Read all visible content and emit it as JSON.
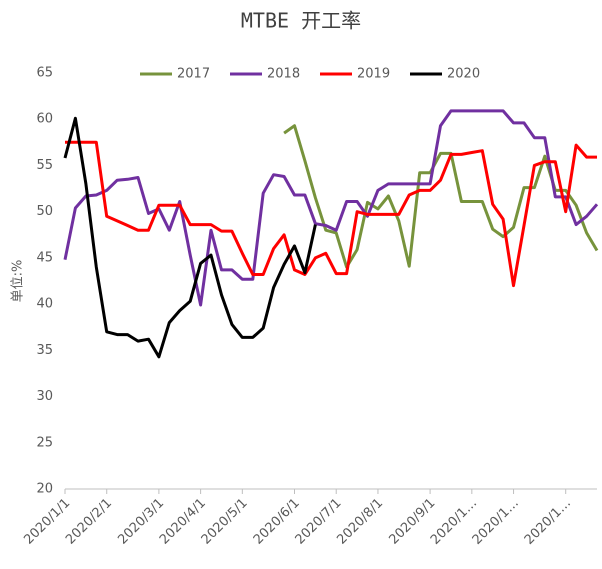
{
  "chart_data": {
    "type": "line",
    "title": "MTBE 开工率",
    "y_label": "单位:%",
    "categories": [
      "2020/1/1",
      null,
      null,
      null,
      "2020/2/1",
      null,
      null,
      null,
      null,
      "2020/3/1",
      null,
      null,
      null,
      "2020/4/1",
      null,
      null,
      null,
      "2020/5/1",
      null,
      null,
      null,
      null,
      "2020/6/1",
      null,
      null,
      null,
      "2020/7/1",
      null,
      null,
      null,
      "2020/8/1",
      null,
      null,
      null,
      null,
      "2020/9/1",
      null,
      null,
      null,
      "2020/1…",
      null,
      null,
      null,
      "2020/1…",
      null,
      null,
      null,
      null,
      "2020/1…",
      null,
      null,
      null
    ],
    "series": [
      {
        "name": "2017",
        "color": "#77933c",
        "values": [
          null,
          null,
          null,
          null,
          null,
          null,
          null,
          null,
          null,
          null,
          null,
          null,
          null,
          null,
          null,
          null,
          null,
          null,
          null,
          null,
          null,
          58.5,
          59.3,
          55.5,
          51.5,
          48,
          47.7,
          44,
          45.9,
          51,
          50.3,
          51.7,
          49,
          44.1,
          54.2,
          54.2,
          56.3,
          56.3,
          51.1,
          51.1,
          51.1,
          48.1,
          47.3,
          48.3,
          52.6,
          52.6,
          56,
          52.3,
          52.3,
          50.7,
          47.7,
          45.8
        ]
      },
      {
        "name": "2018",
        "color": "#7030a0",
        "values": [
          44.8,
          50.4,
          51.7,
          51.8,
          52.3,
          53.4,
          53.5,
          53.7,
          49.8,
          50.3,
          48,
          51.1,
          45.3,
          39.9,
          48,
          43.7,
          43.7,
          42.7,
          42.7,
          52,
          54,
          53.8,
          51.8,
          51.8,
          48.7,
          48.5,
          48,
          51.1,
          51.1,
          49.5,
          52.3,
          53,
          53,
          53,
          53,
          53,
          59.3,
          60.9,
          60.9,
          60.9,
          60.9,
          60.9,
          60.9,
          59.6,
          59.6,
          58,
          58,
          51.6,
          51.6,
          48.6,
          49.5,
          50.8
        ]
      },
      {
        "name": "2019",
        "color": "#ff0000",
        "values": [
          57.5,
          57.5,
          57.5,
          57.5,
          49.5,
          49,
          48.5,
          48,
          48,
          50.7,
          50.7,
          50.7,
          48.6,
          48.6,
          48.6,
          47.9,
          47.9,
          45.5,
          43.2,
          43.2,
          46,
          47.5,
          43.7,
          43.2,
          45,
          45.5,
          43.3,
          43.3,
          50,
          49.7,
          49.7,
          49.7,
          49.7,
          51.8,
          52.3,
          52.3,
          53.4,
          56.2,
          56.2,
          56.4,
          56.6,
          50.8,
          49.2,
          42,
          48.5,
          55,
          55.4,
          55.4,
          50,
          57.2,
          55.9,
          55.9
        ]
      },
      {
        "name": "2020",
        "color": "#000000",
        "values": [
          55.8,
          60.1,
          53,
          44,
          37,
          36.7,
          36.7,
          36,
          36.2,
          34.3,
          38,
          39.3,
          40.3,
          44.4,
          45.3,
          41,
          37.8,
          36.4,
          36.4,
          37.4,
          41.8,
          44.3,
          46.3,
          43.4,
          48.6,
          null,
          null,
          null,
          null,
          null,
          null,
          null,
          null,
          null,
          null,
          null,
          null,
          null,
          null,
          null,
          null,
          null,
          null,
          null,
          null,
          null,
          null,
          null,
          null,
          null,
          null,
          null
        ]
      }
    ],
    "ylim": [
      20,
      65
    ],
    "yticks": [
      20,
      25,
      30,
      35,
      40,
      45,
      50,
      55,
      60,
      65
    ],
    "grid": false,
    "legend": "top"
  }
}
